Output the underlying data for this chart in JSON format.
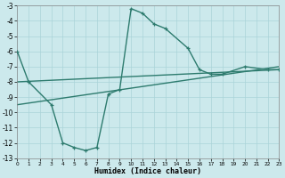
{
  "background_color": "#cce9ec",
  "grid_color": "#aad4d9",
  "line_color": "#2d7b6e",
  "xlabel": "Humidex (Indice chaleur)",
  "xlim": [
    0,
    23
  ],
  "ylim": [
    -13,
    -3
  ],
  "xticks": [
    0,
    1,
    2,
    3,
    4,
    5,
    6,
    7,
    8,
    9,
    10,
    11,
    12,
    13,
    14,
    15,
    16,
    17,
    18,
    19,
    20,
    21,
    22,
    23
  ],
  "yticks": [
    -13,
    -12,
    -11,
    -10,
    -9,
    -8,
    -7,
    -6,
    -5,
    -4,
    -3
  ],
  "curve_x": [
    0,
    1,
    3,
    4,
    5,
    6,
    7,
    8,
    9,
    10,
    11,
    12,
    13,
    15,
    16,
    17,
    18,
    20,
    22,
    23
  ],
  "curve_y": [
    -6,
    -8,
    -9.5,
    -12,
    -12.3,
    -12.5,
    -12.3,
    -8.8,
    -8.5,
    -3.2,
    -3.5,
    -4.2,
    -4.5,
    -5.8,
    -7.2,
    -7.5,
    -7.5,
    -7.0,
    -7.2,
    -7.2
  ],
  "line1_x": [
    0,
    23
  ],
  "line1_y": [
    -8.0,
    -7.2
  ],
  "line2_x": [
    0,
    23
  ],
  "line2_y": [
    -9.5,
    -7.0
  ]
}
